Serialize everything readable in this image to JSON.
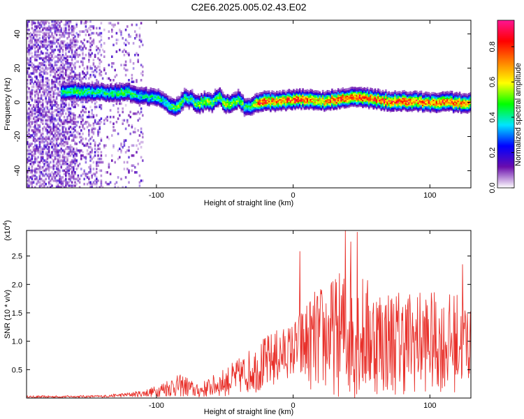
{
  "title": "C2E6.2025.005.02.43.E02",
  "chart_data": [
    {
      "type": "heatmap",
      "title": "C2E6.2025.005.02.43.E02",
      "xlabel": "Height of straight line (km)",
      "ylabel": "Frequency (Hz)",
      "xlim": [
        -195,
        130
      ],
      "ylim": [
        -50,
        48
      ],
      "xticks": [
        -100,
        0,
        100
      ],
      "xtick_labels": [
        "-100",
        "0",
        "100"
      ],
      "yticks": [
        40,
        20,
        0,
        -20,
        -40
      ],
      "ytick_labels": [
        "40",
        "20",
        "0",
        "-20",
        "-40"
      ],
      "colorbar": {
        "label": "Normalized spectral amplitude",
        "range": [
          0,
          0.95
        ],
        "ticks": [
          0,
          0.2,
          0.4,
          0.6,
          0.8
        ],
        "tick_labels": [
          "0.0",
          "0.2",
          "0.4",
          "0.6",
          "0.8"
        ],
        "colors": [
          "#ffffff",
          "#6a0dad",
          "#0000ff",
          "#00e5ff",
          "#00ff00",
          "#ffff00",
          "#ff8000",
          "#ff0000",
          "#ff1493"
        ]
      },
      "ridge": {
        "x": [
          -195,
          -160,
          -140,
          -120,
          -110,
          -100,
          -95,
          -90,
          -85,
          -80,
          -75,
          -70,
          -65,
          -60,
          -55,
          -50,
          -45,
          -40,
          -35,
          -30,
          -25,
          -20,
          -10,
          0,
          10,
          20,
          30,
          40,
          50,
          60,
          70,
          80,
          90,
          100,
          110,
          120,
          130
        ],
        "frequency": [
          6,
          7,
          6,
          6,
          4,
          3,
          1,
          -2,
          -3,
          3,
          2,
          -1,
          1,
          0,
          4,
          -1,
          0,
          2,
          -3,
          -2,
          1,
          1,
          1,
          2,
          2,
          1,
          2,
          3,
          3,
          2,
          1,
          1,
          1,
          0,
          1,
          0,
          0
        ],
        "amplitude": [
          0.25,
          0.5,
          0.45,
          0.5,
          0.4,
          0.45,
          0.4,
          0.5,
          0.55,
          0.5,
          0.45,
          0.55,
          0.6,
          0.55,
          0.5,
          0.6,
          0.55,
          0.55,
          0.45,
          0.5,
          0.85,
          0.85,
          0.75,
          0.85,
          0.8,
          0.7,
          0.85,
          0.8,
          0.85,
          0.8,
          0.85,
          0.85,
          0.8,
          0.8,
          0.85,
          0.8,
          0.75
        ],
        "width": 6
      },
      "noise_region": [
        -195,
        -120
      ]
    },
    {
      "type": "line",
      "xlabel": "Height of straight line (km)",
      "ylabel": "SNR (10 * v/v)",
      "y_multiplier": "(x10^4)",
      "xlim": [
        -195,
        130
      ],
      "ylim": [
        0,
        2.95
      ],
      "xticks": [
        -100,
        0,
        100
      ],
      "xtick_labels": [
        "-100",
        "0",
        "100"
      ],
      "yticks": [
        0.5,
        1.0,
        1.5,
        2.0,
        2.5
      ],
      "ytick_labels": [
        "0.5",
        "1.0",
        "1.5",
        "2.0",
        "2.5"
      ],
      "line_color": "#e8302a",
      "envelope": {
        "x": [
          -195,
          -140,
          -120,
          -110,
          -100,
          -90,
          -80,
          -70,
          -60,
          -50,
          -40,
          -30,
          -20,
          -10,
          -5,
          0,
          10,
          20,
          30,
          40,
          50,
          60,
          70,
          80,
          90,
          100,
          110,
          120,
          130
        ],
        "mean": [
          0.02,
          0.03,
          0.06,
          0.08,
          0.12,
          0.2,
          0.22,
          0.12,
          0.2,
          0.28,
          0.38,
          0.5,
          0.6,
          0.75,
          0.8,
          0.85,
          0.95,
          1.05,
          1.1,
          1.15,
          1.1,
          1.05,
          1.0,
          1.0,
          1.0,
          1.0,
          0.95,
          1.0,
          1.0
        ],
        "amplitude": [
          0.02,
          0.02,
          0.04,
          0.06,
          0.1,
          0.18,
          0.2,
          0.12,
          0.18,
          0.25,
          0.32,
          0.4,
          0.5,
          0.5,
          0.45,
          0.5,
          0.8,
          0.95,
          1.05,
          1.2,
          1.1,
          1.0,
          0.95,
          0.95,
          0.9,
          0.9,
          0.85,
          0.9,
          0.7
        ]
      },
      "spikes": [
        {
          "x": 5,
          "y": 2.58
        },
        {
          "x": 38,
          "y": 2.95
        },
        {
          "x": 42,
          "y": 2.75
        },
        {
          "x": 47,
          "y": 2.92
        },
        {
          "x": 124,
          "y": 2.35
        }
      ],
      "sample_count": 900
    }
  ]
}
